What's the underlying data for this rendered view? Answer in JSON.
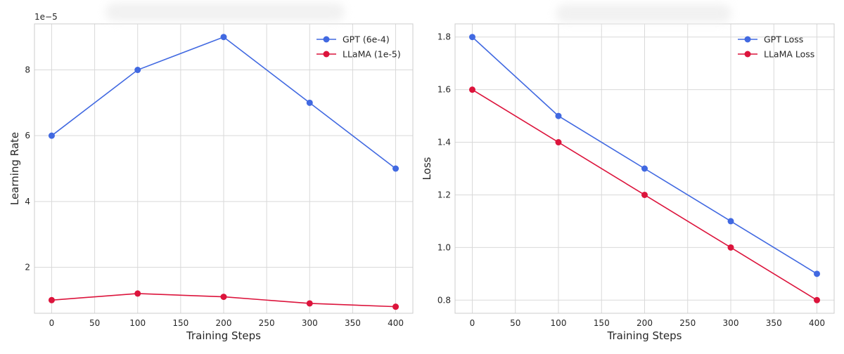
{
  "chart_data": [
    {
      "type": "line",
      "title": "",
      "xlabel": "Training Steps",
      "ylabel": "Learning Rate",
      "y_scale_label": "1e−5",
      "x": [
        0,
        100,
        200,
        300,
        400
      ],
      "xlim": [
        -20,
        420
      ],
      "ylim": [
        0.6,
        9.4
      ],
      "xticks": [
        0,
        50,
        100,
        150,
        200,
        250,
        300,
        350,
        400
      ],
      "yticks": [
        2,
        4,
        6,
        8
      ],
      "grid": true,
      "legend_position": "top-right",
      "series": [
        {
          "name": "GPT (6e-4)",
          "color": "#4169e1",
          "values": [
            6.0,
            8.0,
            9.0,
            7.0,
            5.0
          ]
        },
        {
          "name": "LLaMA (1e-5)",
          "color": "#dc143c",
          "values": [
            1.0,
            1.2,
            1.1,
            0.9,
            0.8
          ]
        }
      ]
    },
    {
      "type": "line",
      "title": "",
      "xlabel": "Training Steps",
      "ylabel": "Loss",
      "x": [
        0,
        100,
        200,
        300,
        400
      ],
      "xlim": [
        -20,
        420
      ],
      "ylim": [
        0.75,
        1.85
      ],
      "xticks": [
        0,
        50,
        100,
        150,
        200,
        250,
        300,
        350,
        400
      ],
      "yticks": [
        0.8,
        1.0,
        1.2,
        1.4,
        1.6,
        1.8
      ],
      "grid": true,
      "legend_position": "top-right",
      "series": [
        {
          "name": "GPT Loss",
          "color": "#4169e1",
          "values": [
            1.8,
            1.5,
            1.3,
            1.1,
            0.9
          ]
        },
        {
          "name": "LLaMA Loss",
          "color": "#dc143c",
          "values": [
            1.6,
            1.4,
            1.2,
            1.0,
            0.8
          ]
        }
      ]
    }
  ]
}
